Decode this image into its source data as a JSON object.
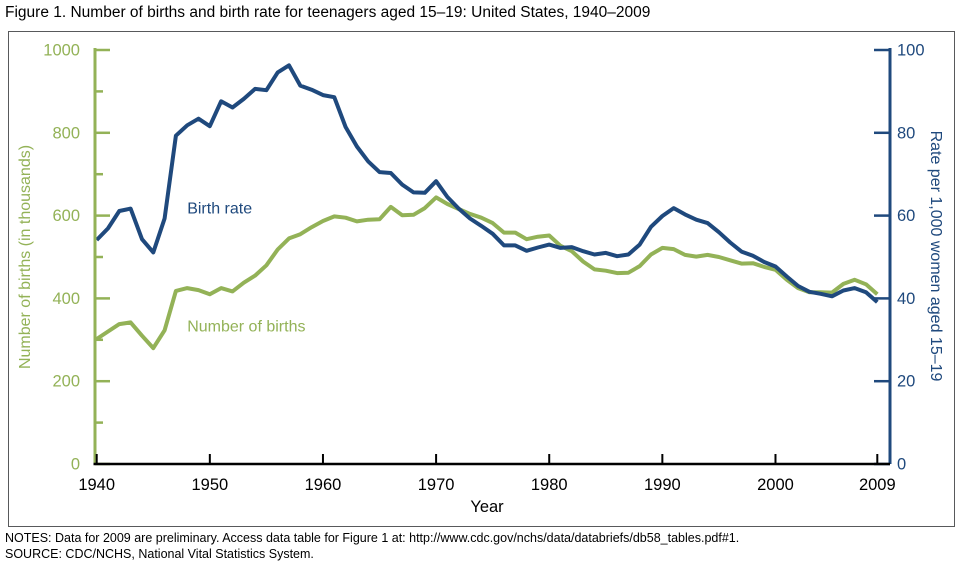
{
  "header": {
    "title": "Figure 1. Number of births and birth rate for teenagers aged 15–19: United States, 1940–2009"
  },
  "chart_data": {
    "type": "line",
    "title": "Figure 1. Number of births and birth rate for teenagers aged 15–19: United States, 1940–2009",
    "xlabel": "Year",
    "x_range": [
      1940,
      2009
    ],
    "x_ticks": [
      1940,
      1950,
      1960,
      1970,
      1980,
      1990,
      2000,
      2009
    ],
    "grid": false,
    "left_axis": {
      "label": "Number of births (in thousands)",
      "range": [
        0,
        1000
      ],
      "major_ticks": [
        0,
        200,
        400,
        600,
        800,
        1000
      ],
      "minor_ticks": [
        100,
        300,
        500,
        700,
        900
      ],
      "color": "#93B257"
    },
    "right_axis": {
      "label": "Rate per 1,000 women aged 15–19",
      "range": [
        0,
        100
      ],
      "major_ticks": [
        0,
        20,
        40,
        60,
        80,
        100
      ],
      "color": "#1F497D"
    },
    "years": [
      1940,
      1941,
      1942,
      1943,
      1944,
      1945,
      1946,
      1947,
      1948,
      1949,
      1950,
      1951,
      1952,
      1953,
      1954,
      1955,
      1956,
      1957,
      1958,
      1959,
      1960,
      1961,
      1962,
      1963,
      1964,
      1965,
      1966,
      1967,
      1968,
      1969,
      1970,
      1971,
      1972,
      1973,
      1974,
      1975,
      1976,
      1977,
      1978,
      1979,
      1980,
      1981,
      1982,
      1983,
      1984,
      1985,
      1986,
      1987,
      1988,
      1989,
      1990,
      1991,
      1992,
      1993,
      1994,
      1995,
      1996,
      1997,
      1998,
      1999,
      2000,
      2001,
      2002,
      2003,
      2004,
      2005,
      2006,
      2007,
      2008,
      2009
    ],
    "series": [
      {
        "name": "Number of births",
        "axis": "left",
        "color": "#93B257",
        "values": [
          302,
          320,
          338,
          342,
          310,
          280,
          323,
          418,
          425,
          420,
          410,
          425,
          417,
          438,
          455,
          480,
          518,
          545,
          555,
          572,
          587,
          598,
          595,
          586,
          590,
          591,
          621,
          601,
          602,
          618,
          644,
          628,
          616,
          604,
          595,
          582,
          559,
          559,
          543,
          549,
          552,
          527,
          514,
          489,
          470,
          467,
          461,
          462,
          478,
          506,
          522,
          519,
          505,
          501,
          505,
          500,
          492,
          484,
          485,
          476,
          469,
          445,
          425,
          415,
          415,
          414,
          435,
          445,
          434,
          410
        ]
      },
      {
        "name": "Birth rate",
        "axis": "right",
        "color": "#1F497D",
        "values": [
          54.1,
          56.9,
          61.1,
          61.7,
          54.3,
          51.1,
          59.3,
          79.3,
          81.8,
          83.4,
          81.6,
          87.6,
          86.1,
          88.2,
          90.6,
          90.3,
          94.6,
          96.3,
          91.4,
          90.4,
          89.1,
          88.6,
          81.4,
          76.7,
          73.1,
          70.5,
          70.3,
          67.5,
          65.6,
          65.5,
          68.3,
          64.5,
          61.7,
          59.3,
          57.5,
          55.6,
          52.8,
          52.8,
          51.5,
          52.3,
          53.0,
          52.2,
          52.4,
          51.4,
          50.6,
          51.0,
          50.2,
          50.6,
          53.0,
          57.3,
          59.9,
          61.8,
          60.3,
          59.0,
          58.2,
          56.0,
          53.5,
          51.3,
          50.3,
          48.8,
          47.7,
          45.3,
          43.0,
          41.6,
          41.1,
          40.5,
          41.9,
          42.5,
          41.5,
          39.1
        ]
      }
    ],
    "annotations": [
      {
        "text": "Birth rate",
        "axis": "right",
        "year": 1948.0,
        "value": 60.5,
        "color": "#1F497D"
      },
      {
        "text": "Number of births",
        "axis": "left",
        "year": 1948.0,
        "value": 320,
        "color": "#93B257"
      }
    ],
    "legend_position": "inline-labels"
  },
  "footer": {
    "notes": "NOTES: Data for 2009 are preliminary. Access data table for Figure 1 at: http://www.cdc.gov/nchs/data/databriefs/db58_tables.pdf#1.",
    "source": "SOURCE: CDC/NCHS, National Vital Statistics System."
  }
}
